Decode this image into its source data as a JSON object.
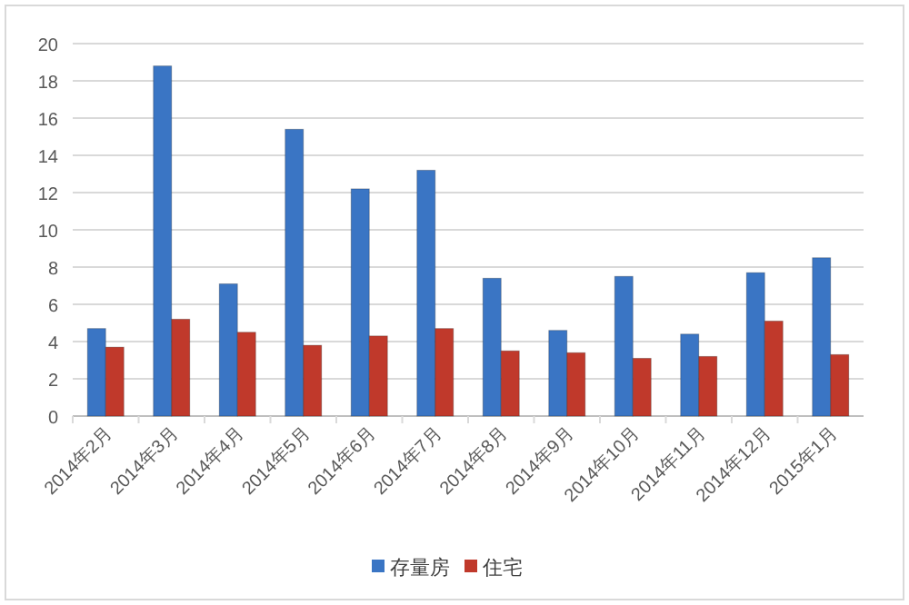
{
  "chart_data": {
    "type": "bar",
    "categories": [
      "2014年2月",
      "2014年3月",
      "2014年4月",
      "2014年5月",
      "2014年6月",
      "2014年7月",
      "2014年8月",
      "2014年9月",
      "2014年10月",
      "2014年11月",
      "2014年12月",
      "2015年1月"
    ],
    "series": [
      {
        "name": "存量房",
        "color": "#3a75c4",
        "values": [
          4.7,
          18.8,
          7.1,
          15.4,
          12.2,
          13.2,
          7.4,
          4.6,
          7.5,
          4.4,
          7.7,
          8.5
        ]
      },
      {
        "name": "住宅",
        "color": "#c0392b",
        "values": [
          3.7,
          5.2,
          4.5,
          3.8,
          4.3,
          4.7,
          3.5,
          3.4,
          3.1,
          3.2,
          5.1,
          3.3
        ]
      }
    ],
    "ylim": [
      0,
      20
    ],
    "yticks": [
      0,
      2,
      4,
      6,
      8,
      10,
      12,
      14,
      16,
      18,
      20
    ],
    "grid": "y",
    "legend": "bottom"
  }
}
